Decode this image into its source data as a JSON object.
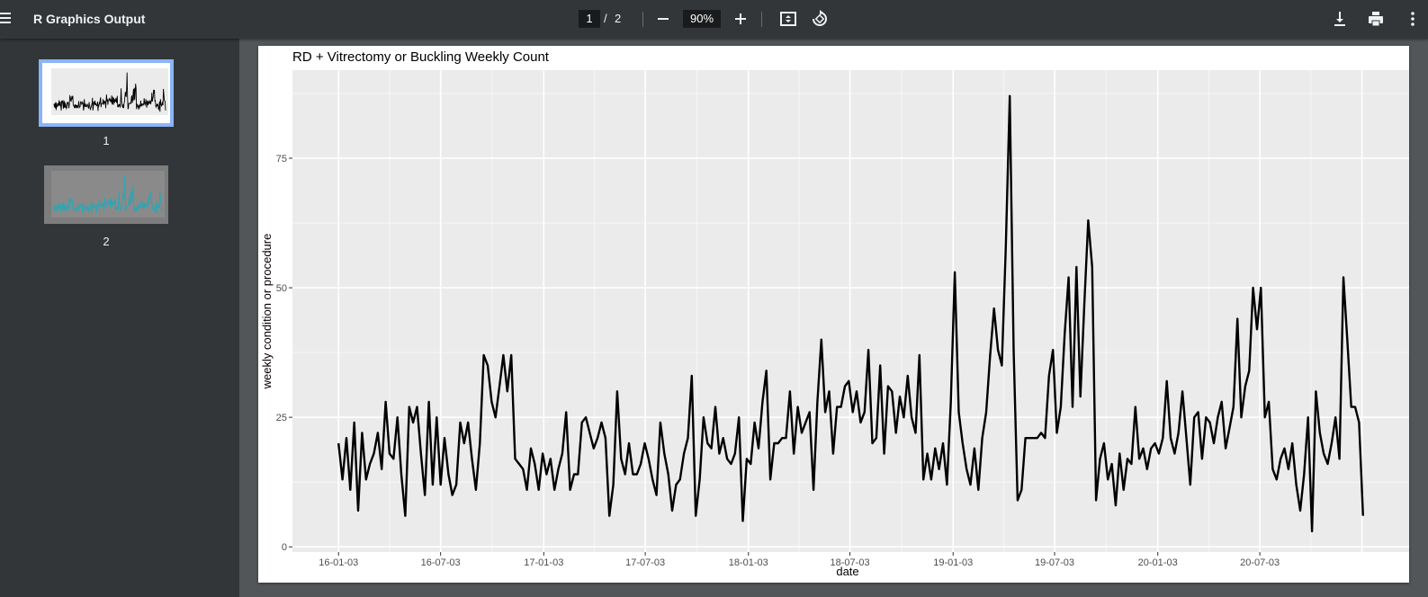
{
  "toolbar": {
    "title": "R Graphics Output",
    "current_page": "1",
    "page_separator": "/",
    "total_pages": "2",
    "zoom": "90%",
    "icons": [
      "menu-icon",
      "zoom-out-icon",
      "zoom-in-icon",
      "fit-page-icon",
      "rotate-icon",
      "download-icon",
      "print-icon",
      "more-icon"
    ]
  },
  "sidebar": {
    "thumbnails": [
      {
        "label": "1",
        "selected": true
      },
      {
        "label": "2",
        "selected": false
      }
    ]
  },
  "colors": {
    "toolbar_bg": "#323639",
    "viewer_bg": "#525659",
    "panel_bg": "#ebebeb",
    "grid": "#ffffff",
    "line": "#000000",
    "thumb_selected": "#8ab4f8",
    "thumb2_line": "#2aa7b5"
  },
  "chart_data": {
    "type": "line",
    "title": "RD + Vitrectomy or Buckling Weekly Count",
    "xlabel": "date",
    "ylabel": "weekly condition or procedure",
    "ylim": [
      -1,
      92
    ],
    "y_ticks": [
      0,
      25,
      50,
      75
    ],
    "x_ticks": [
      "16-01-03",
      "16-07-03",
      "17-01-03",
      "17-07-03",
      "18-01-03",
      "18-07-03",
      "19-01-03",
      "19-07-03",
      "20-01-03",
      "20-07-03"
    ],
    "grid": true,
    "legend": "none",
    "x_start": "2016-01-03",
    "x_interval_days": 7,
    "series": [
      {
        "values": [
          20,
          13,
          21,
          11,
          24,
          7,
          22,
          13,
          16,
          18,
          22,
          15,
          28,
          18,
          17,
          25,
          14,
          6,
          27,
          24,
          27,
          18,
          10,
          28,
          12,
          25,
          12,
          21,
          14,
          10,
          12,
          24,
          20,
          24,
          17,
          11,
          20,
          37,
          35,
          28,
          25,
          31,
          37,
          30,
          37,
          17,
          16,
          15,
          11,
          19,
          16,
          11,
          18,
          14,
          17,
          11,
          15,
          18,
          26,
          11,
          14,
          14,
          24,
          25,
          22,
          19,
          21,
          24,
          21,
          6,
          12,
          30,
          17,
          14,
          20,
          14,
          14,
          16,
          20,
          17,
          13,
          10,
          24,
          18,
          14,
          7,
          12,
          13,
          18,
          21,
          33,
          6,
          13,
          25,
          20,
          19,
          27,
          18,
          21,
          17,
          16,
          18,
          25,
          5,
          17,
          16,
          24,
          19,
          28,
          34,
          13,
          20,
          20,
          21,
          21,
          30,
          18,
          27,
          22,
          24,
          26,
          11,
          28,
          40,
          26,
          30,
          18,
          27,
          27,
          31,
          32,
          26,
          30,
          24,
          26,
          38,
          20,
          21,
          35,
          18,
          31,
          30,
          22,
          29,
          25,
          33,
          25,
          22,
          37,
          13,
          18,
          13,
          19,
          15,
          20,
          12,
          28,
          53,
          26,
          20,
          15,
          12,
          19,
          11,
          21,
          26,
          37,
          46,
          38,
          35,
          58,
          87,
          38,
          9,
          11,
          21,
          21,
          21,
          21,
          22,
          21,
          33,
          38,
          22,
          27,
          41,
          52,
          27,
          54,
          29,
          47,
          63,
          54,
          9,
          17,
          20,
          13,
          16,
          8,
          18,
          11,
          17,
          16,
          27,
          17,
          19,
          15,
          19,
          20,
          18,
          21,
          32,
          21,
          18,
          22,
          30,
          21,
          12,
          25,
          26,
          17,
          25,
          24,
          20,
          25,
          28,
          19,
          23,
          27,
          44,
          25,
          31,
          34,
          50,
          42,
          50,
          25,
          28,
          15,
          13,
          17,
          19,
          15,
          20,
          12,
          7,
          14,
          25,
          3,
          30,
          22,
          18,
          16,
          20,
          25,
          17,
          52,
          40,
          27,
          27,
          24,
          6
        ]
      }
    ]
  }
}
